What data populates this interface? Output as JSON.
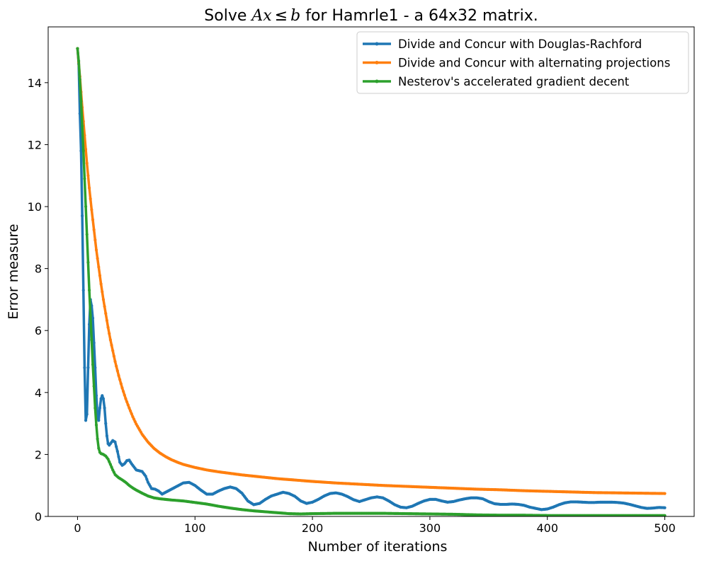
{
  "chart_data": {
    "type": "line",
    "title": "Solve Ax ≤ b for Hamrle1 - a 64x32 matrix.",
    "title_parts": {
      "prefix": "Solve ",
      "math_A": "A",
      "math_x": "x",
      "leq": "≤",
      "math_b": "b",
      "suffix": " for Hamrle1 - a 64x32 matrix."
    },
    "xlabel": "Number of iterations",
    "ylabel": "Error measure",
    "xlim": [
      -25,
      525
    ],
    "ylim": [
      0,
      15.8
    ],
    "xticks": [
      0,
      100,
      200,
      300,
      400,
      500
    ],
    "yticks": [
      0,
      2,
      4,
      6,
      8,
      10,
      12,
      14
    ],
    "legend_position": "upper right",
    "series": [
      {
        "name": "Divide and Concur with Douglas-Rachford",
        "color": "#1f77b4",
        "points": [
          [
            0,
            15.1
          ],
          [
            1,
            14.6
          ],
          [
            2,
            13.0
          ],
          [
            3,
            11.8
          ],
          [
            4,
            9.7
          ],
          [
            5,
            7.3
          ],
          [
            6,
            4.8
          ],
          [
            7,
            3.1
          ],
          [
            8,
            3.3
          ],
          [
            9,
            4.8
          ],
          [
            10,
            6.2
          ],
          [
            11,
            7.0
          ],
          [
            12,
            6.8
          ],
          [
            13,
            6.4
          ],
          [
            14,
            5.6
          ],
          [
            15,
            4.8
          ],
          [
            16,
            3.9
          ],
          [
            17,
            3.2
          ],
          [
            18,
            3.1
          ],
          [
            19,
            3.5
          ],
          [
            20,
            3.8
          ],
          [
            21,
            3.9
          ],
          [
            22,
            3.8
          ],
          [
            23,
            3.5
          ],
          [
            24,
            3.0
          ],
          [
            25,
            2.6
          ],
          [
            26,
            2.35
          ],
          [
            27,
            2.3
          ],
          [
            28,
            2.35
          ],
          [
            30,
            2.45
          ],
          [
            32,
            2.4
          ],
          [
            34,
            2.1
          ],
          [
            36,
            1.75
          ],
          [
            38,
            1.65
          ],
          [
            40,
            1.7
          ],
          [
            42,
            1.8
          ],
          [
            44,
            1.82
          ],
          [
            46,
            1.7
          ],
          [
            50,
            1.5
          ],
          [
            55,
            1.45
          ],
          [
            58,
            1.3
          ],
          [
            60,
            1.1
          ],
          [
            63,
            0.9
          ],
          [
            66,
            0.88
          ],
          [
            69,
            0.82
          ],
          [
            72,
            0.72
          ],
          [
            76,
            0.8
          ],
          [
            80,
            0.88
          ],
          [
            85,
            0.98
          ],
          [
            90,
            1.08
          ],
          [
            95,
            1.1
          ],
          [
            100,
            1.0
          ],
          [
            105,
            0.85
          ],
          [
            110,
            0.72
          ],
          [
            115,
            0.72
          ],
          [
            120,
            0.82
          ],
          [
            125,
            0.9
          ],
          [
            130,
            0.95
          ],
          [
            135,
            0.9
          ],
          [
            140,
            0.75
          ],
          [
            145,
            0.5
          ],
          [
            150,
            0.38
          ],
          [
            155,
            0.42
          ],
          [
            160,
            0.55
          ],
          [
            165,
            0.66
          ],
          [
            170,
            0.72
          ],
          [
            175,
            0.78
          ],
          [
            180,
            0.74
          ],
          [
            185,
            0.65
          ],
          [
            190,
            0.5
          ],
          [
            195,
            0.42
          ],
          [
            200,
            0.46
          ],
          [
            205,
            0.55
          ],
          [
            210,
            0.66
          ],
          [
            215,
            0.74
          ],
          [
            220,
            0.76
          ],
          [
            225,
            0.72
          ],
          [
            230,
            0.64
          ],
          [
            235,
            0.54
          ],
          [
            240,
            0.48
          ],
          [
            245,
            0.54
          ],
          [
            250,
            0.6
          ],
          [
            255,
            0.63
          ],
          [
            260,
            0.6
          ],
          [
            265,
            0.5
          ],
          [
            270,
            0.38
          ],
          [
            275,
            0.3
          ],
          [
            280,
            0.28
          ],
          [
            285,
            0.33
          ],
          [
            290,
            0.42
          ],
          [
            295,
            0.5
          ],
          [
            300,
            0.55
          ],
          [
            305,
            0.55
          ],
          [
            310,
            0.5
          ],
          [
            315,
            0.46
          ],
          [
            320,
            0.48
          ],
          [
            325,
            0.53
          ],
          [
            330,
            0.57
          ],
          [
            335,
            0.6
          ],
          [
            340,
            0.6
          ],
          [
            345,
            0.57
          ],
          [
            350,
            0.48
          ],
          [
            355,
            0.41
          ],
          [
            360,
            0.39
          ],
          [
            365,
            0.39
          ],
          [
            370,
            0.4
          ],
          [
            375,
            0.39
          ],
          [
            380,
            0.36
          ],
          [
            385,
            0.3
          ],
          [
            390,
            0.26
          ],
          [
            395,
            0.22
          ],
          [
            400,
            0.24
          ],
          [
            405,
            0.3
          ],
          [
            410,
            0.38
          ],
          [
            415,
            0.44
          ],
          [
            420,
            0.47
          ],
          [
            425,
            0.47
          ],
          [
            430,
            0.46
          ],
          [
            435,
            0.45
          ],
          [
            440,
            0.45
          ],
          [
            445,
            0.46
          ],
          [
            450,
            0.46
          ],
          [
            455,
            0.46
          ],
          [
            460,
            0.45
          ],
          [
            465,
            0.43
          ],
          [
            470,
            0.39
          ],
          [
            475,
            0.34
          ],
          [
            480,
            0.29
          ],
          [
            485,
            0.26
          ],
          [
            490,
            0.27
          ],
          [
            495,
            0.29
          ],
          [
            500,
            0.28
          ]
        ]
      },
      {
        "name": "Divide and Concur with alternating projections",
        "color": "#ff7f0e",
        "points": [
          [
            0,
            15.1
          ],
          [
            2,
            14.2
          ],
          [
            4,
            13.2
          ],
          [
            6,
            12.3
          ],
          [
            8,
            11.4
          ],
          [
            10,
            10.6
          ],
          [
            12,
            9.9
          ],
          [
            14,
            9.25
          ],
          [
            16,
            8.6
          ],
          [
            18,
            8.05
          ],
          [
            20,
            7.5
          ],
          [
            22,
            7.0
          ],
          [
            24,
            6.55
          ],
          [
            26,
            6.1
          ],
          [
            28,
            5.7
          ],
          [
            30,
            5.35
          ],
          [
            32,
            5.0
          ],
          [
            35,
            4.55
          ],
          [
            38,
            4.15
          ],
          [
            41,
            3.8
          ],
          [
            44,
            3.5
          ],
          [
            47,
            3.22
          ],
          [
            50,
            2.98
          ],
          [
            55,
            2.65
          ],
          [
            60,
            2.4
          ],
          [
            65,
            2.2
          ],
          [
            70,
            2.05
          ],
          [
            75,
            1.93
          ],
          [
            80,
            1.83
          ],
          [
            85,
            1.75
          ],
          [
            90,
            1.68
          ],
          [
            100,
            1.58
          ],
          [
            110,
            1.5
          ],
          [
            120,
            1.44
          ],
          [
            130,
            1.39
          ],
          [
            140,
            1.34
          ],
          [
            150,
            1.3
          ],
          [
            160,
            1.26
          ],
          [
            170,
            1.22
          ],
          [
            180,
            1.19
          ],
          [
            200,
            1.13
          ],
          [
            220,
            1.08
          ],
          [
            240,
            1.04
          ],
          [
            260,
            1.0
          ],
          [
            280,
            0.97
          ],
          [
            300,
            0.94
          ],
          [
            320,
            0.91
          ],
          [
            340,
            0.88
          ],
          [
            360,
            0.86
          ],
          [
            380,
            0.83
          ],
          [
            400,
            0.81
          ],
          [
            420,
            0.79
          ],
          [
            440,
            0.77
          ],
          [
            460,
            0.76
          ],
          [
            480,
            0.75
          ],
          [
            500,
            0.74
          ]
        ]
      },
      {
        "name": "Nesterov's accelerated gradient decent",
        "color": "#2ca02c",
        "points": [
          [
            0,
            15.1
          ],
          [
            1,
            14.7
          ],
          [
            2,
            14.1
          ],
          [
            3,
            13.4
          ],
          [
            4,
            12.6
          ],
          [
            5,
            11.8
          ],
          [
            6,
            10.9
          ],
          [
            7,
            10.0
          ],
          [
            8,
            9.1
          ],
          [
            9,
            8.2
          ],
          [
            10,
            7.3
          ],
          [
            11,
            6.5
          ],
          [
            12,
            5.7
          ],
          [
            13,
            4.9
          ],
          [
            14,
            4.2
          ],
          [
            15,
            3.5
          ],
          [
            16,
            2.95
          ],
          [
            17,
            2.5
          ],
          [
            18,
            2.2
          ],
          [
            19,
            2.07
          ],
          [
            20,
            2.03
          ],
          [
            22,
            2.0
          ],
          [
            24,
            1.95
          ],
          [
            26,
            1.85
          ],
          [
            28,
            1.68
          ],
          [
            30,
            1.5
          ],
          [
            32,
            1.35
          ],
          [
            35,
            1.25
          ],
          [
            38,
            1.18
          ],
          [
            41,
            1.1
          ],
          [
            44,
            1.0
          ],
          [
            47,
            0.92
          ],
          [
            50,
            0.85
          ],
          [
            55,
            0.75
          ],
          [
            60,
            0.66
          ],
          [
            65,
            0.6
          ],
          [
            70,
            0.57
          ],
          [
            80,
            0.53
          ],
          [
            90,
            0.5
          ],
          [
            100,
            0.45
          ],
          [
            110,
            0.4
          ],
          [
            120,
            0.33
          ],
          [
            130,
            0.27
          ],
          [
            140,
            0.22
          ],
          [
            150,
            0.18
          ],
          [
            160,
            0.15
          ],
          [
            170,
            0.12
          ],
          [
            180,
            0.09
          ],
          [
            190,
            0.08
          ],
          [
            200,
            0.09
          ],
          [
            220,
            0.1
          ],
          [
            240,
            0.1
          ],
          [
            260,
            0.1
          ],
          [
            280,
            0.09
          ],
          [
            300,
            0.08
          ],
          [
            320,
            0.07
          ],
          [
            340,
            0.05
          ],
          [
            360,
            0.04
          ],
          [
            380,
            0.04
          ],
          [
            400,
            0.03
          ],
          [
            420,
            0.03
          ],
          [
            440,
            0.03
          ],
          [
            460,
            0.03
          ],
          [
            480,
            0.03
          ],
          [
            500,
            0.03
          ]
        ]
      }
    ]
  }
}
